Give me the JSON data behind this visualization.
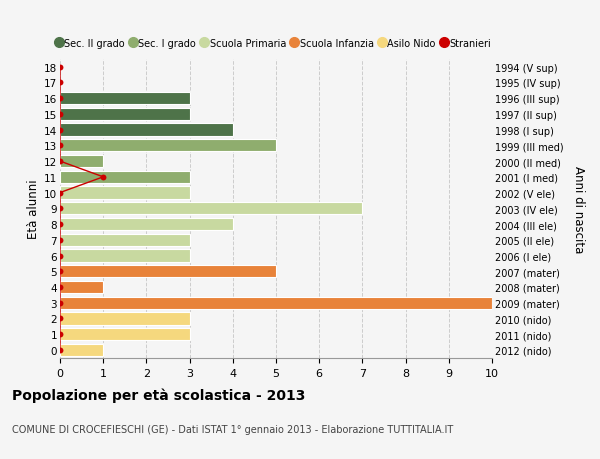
{
  "ages": [
    0,
    1,
    2,
    3,
    4,
    5,
    6,
    7,
    8,
    9,
    10,
    11,
    12,
    13,
    14,
    15,
    16,
    17,
    18
  ],
  "right_labels": [
    "2012 (nido)",
    "2011 (nido)",
    "2010 (nido)",
    "2009 (mater)",
    "2008 (mater)",
    "2007 (mater)",
    "2006 (I ele)",
    "2005 (II ele)",
    "2004 (III ele)",
    "2003 (IV ele)",
    "2002 (V ele)",
    "2001 (I med)",
    "2000 (II med)",
    "1999 (III med)",
    "1998 (I sup)",
    "1997 (II sup)",
    "1996 (III sup)",
    "1995 (IV sup)",
    "1994 (V sup)"
  ],
  "bar_values": [
    1,
    3,
    3,
    10,
    1,
    5,
    3,
    3,
    4,
    7,
    3,
    3,
    1,
    5,
    4,
    3,
    3,
    0,
    0
  ],
  "bar_colors": [
    "#f5d87e",
    "#f5d87e",
    "#f5d87e",
    "#e8833a",
    "#e8833a",
    "#e8833a",
    "#c8d9a0",
    "#c8d9a0",
    "#c8d9a0",
    "#c8d9a0",
    "#c8d9a0",
    "#8fad6e",
    "#8fad6e",
    "#8fad6e",
    "#4e7349",
    "#4e7349",
    "#4e7349",
    "#4e7349",
    "#4e7349"
  ],
  "stranieri_vals": [
    0,
    0,
    0,
    0,
    0,
    0,
    0,
    0,
    0,
    0,
    0,
    1,
    0,
    0,
    0,
    0,
    0,
    0,
    0
  ],
  "xlim": [
    0,
    10
  ],
  "ylim": [
    -0.5,
    18.5
  ],
  "ylabel_left": "Età alunni",
  "ylabel_right": "Anni di nascita",
  "title_bold": "Popolazione per età scolastica - 2013",
  "subtitle": "COMUNE DI CROCEFIESCHI (GE) - Dati ISTAT 1° gennaio 2013 - Elaborazione TUTTITALIA.IT",
  "legend_entries": [
    {
      "label": "Sec. II grado",
      "color": "#4e7349"
    },
    {
      "label": "Sec. I grado",
      "color": "#8fad6e"
    },
    {
      "label": "Scuola Primaria",
      "color": "#c8d9a0"
    },
    {
      "label": "Scuola Infanzia",
      "color": "#e8833a"
    },
    {
      "label": "Asilo Nido",
      "color": "#f5d87e"
    },
    {
      "label": "Stranieri",
      "color": "#cc0000"
    }
  ],
  "bg_color": "#f5f5f5",
  "grid_color": "#cccccc",
  "xticks": [
    0,
    1,
    2,
    3,
    4,
    5,
    6,
    7,
    8,
    9,
    10
  ]
}
